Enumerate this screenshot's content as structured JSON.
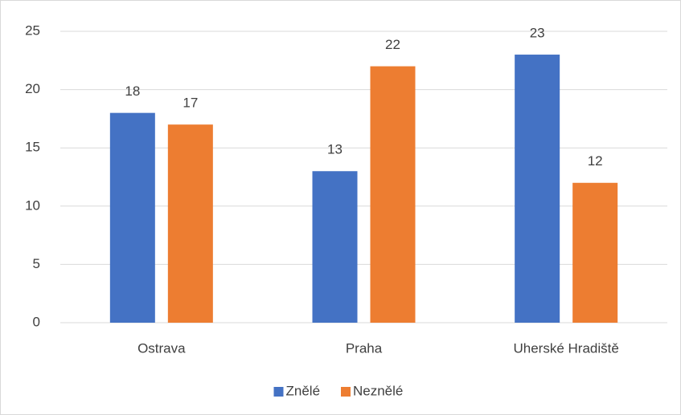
{
  "chart_data": {
    "type": "bar",
    "categories": [
      "Ostrava",
      "Praha",
      "Uherské Hradiště"
    ],
    "series": [
      {
        "name": "Znělé",
        "color": "#4472c4",
        "values": [
          18,
          13,
          23
        ]
      },
      {
        "name": "Neznělé",
        "color": "#ed7d31",
        "values": [
          17,
          22,
          12
        ]
      }
    ],
    "ylim": [
      0,
      25
    ],
    "yticks": [
      0,
      5,
      10,
      15,
      20,
      25
    ],
    "grid": true,
    "legend": "bottom"
  }
}
